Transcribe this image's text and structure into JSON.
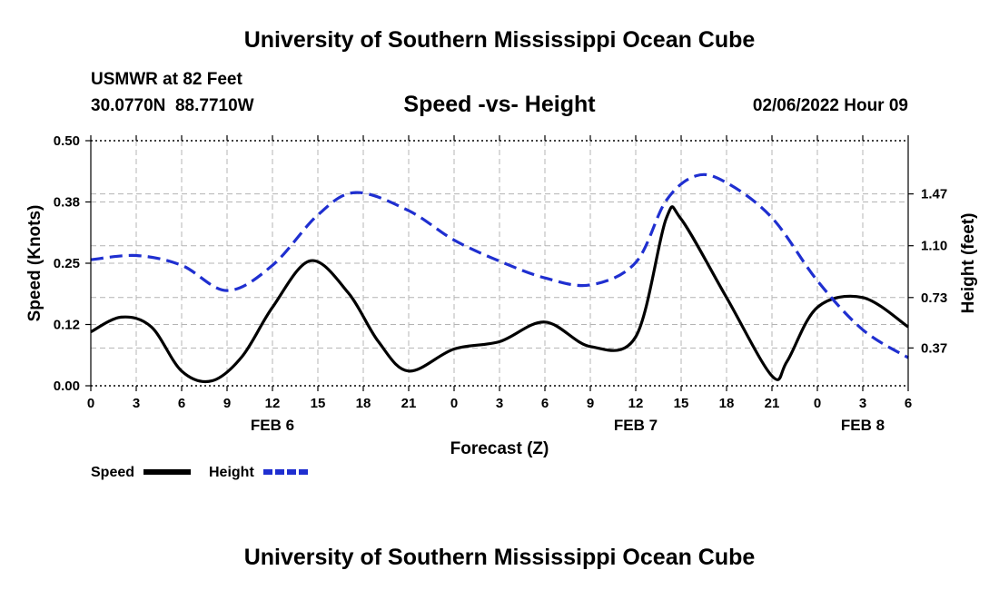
{
  "page": {
    "title": "University of Southern Mississippi Ocean Cube",
    "station": "USMWR at 82 Feet",
    "coords": "30.0770N  88.7710W",
    "chart_title": "Speed -vs- Height",
    "datetime": "02/06/2022 Hour 09",
    "footer_title": "University of Southern Mississippi Ocean Cube"
  },
  "colors": {
    "speed": "#000000",
    "height": "#1f2fd0",
    "grid": "#b4b4b4"
  },
  "chart_data": {
    "type": "line",
    "title": "Speed -vs- Height",
    "xlabel": "Forecast (Z)",
    "ylabel": "Speed (Knots)",
    "y2label": "Height (feet)",
    "xlim": [
      0,
      54
    ],
    "ylim": [
      0,
      0.5
    ],
    "y2lim": [
      0.1,
      1.85
    ],
    "x_ticks": [
      0,
      3,
      6,
      9,
      12,
      15,
      18,
      21,
      24,
      27,
      30,
      33,
      36,
      39,
      42,
      45,
      48,
      51,
      54
    ],
    "x_tick_labels": [
      "0",
      "3",
      "6",
      "9",
      "12",
      "15",
      "18",
      "21",
      "0",
      "3",
      "6",
      "9",
      "12",
      "15",
      "18",
      "21",
      "0",
      "3",
      "6"
    ],
    "y_ticks": [
      0.0,
      0.125,
      0.25,
      0.375,
      0.5
    ],
    "y_tick_labels": [
      "0.00",
      "0.12",
      "0.25",
      "0.38",
      "0.50"
    ],
    "y2_ticks": [
      0.37,
      0.73,
      1.1,
      1.47
    ],
    "y2_tick_labels": [
      "0.37",
      "0.73",
      "1.10",
      "1.47"
    ],
    "day_labels": [
      {
        "x": 12,
        "label": "FEB 6"
      },
      {
        "x": 36,
        "label": "FEB 7"
      },
      {
        "x": 51,
        "label": "FEB 8"
      }
    ],
    "grid": true,
    "legend": [
      {
        "name": "Speed",
        "style": "solid"
      },
      {
        "name": "Height",
        "style": "dashed"
      }
    ],
    "series": [
      {
        "name": "Speed",
        "axis": "left",
        "style": "solid",
        "x": [
          0,
          2,
          4,
          6,
          8,
          10,
          12,
          14.5,
          17,
          19,
          21,
          24,
          27,
          30,
          33,
          36,
          38,
          39,
          42,
          45,
          46,
          48,
          51,
          54
        ],
        "values": [
          0.11,
          0.14,
          0.12,
          0.03,
          0.01,
          0.06,
          0.16,
          0.255,
          0.19,
          0.09,
          0.03,
          0.075,
          0.09,
          0.13,
          0.08,
          0.1,
          0.34,
          0.34,
          0.18,
          0.02,
          0.05,
          0.16,
          0.18,
          0.12
        ]
      },
      {
        "name": "Height",
        "axis": "right",
        "style": "dashed",
        "x": [
          0,
          3,
          6,
          9,
          12,
          15,
          17.5,
          21,
          24,
          27,
          30,
          33,
          36,
          38,
          40,
          42,
          45,
          48,
          51,
          54
        ],
        "values": [
          1.0,
          1.03,
          0.96,
          0.78,
          0.96,
          1.32,
          1.48,
          1.35,
          1.14,
          0.99,
          0.87,
          0.82,
          0.98,
          1.42,
          1.6,
          1.55,
          1.3,
          0.85,
          0.5,
          0.3
        ]
      }
    ]
  }
}
